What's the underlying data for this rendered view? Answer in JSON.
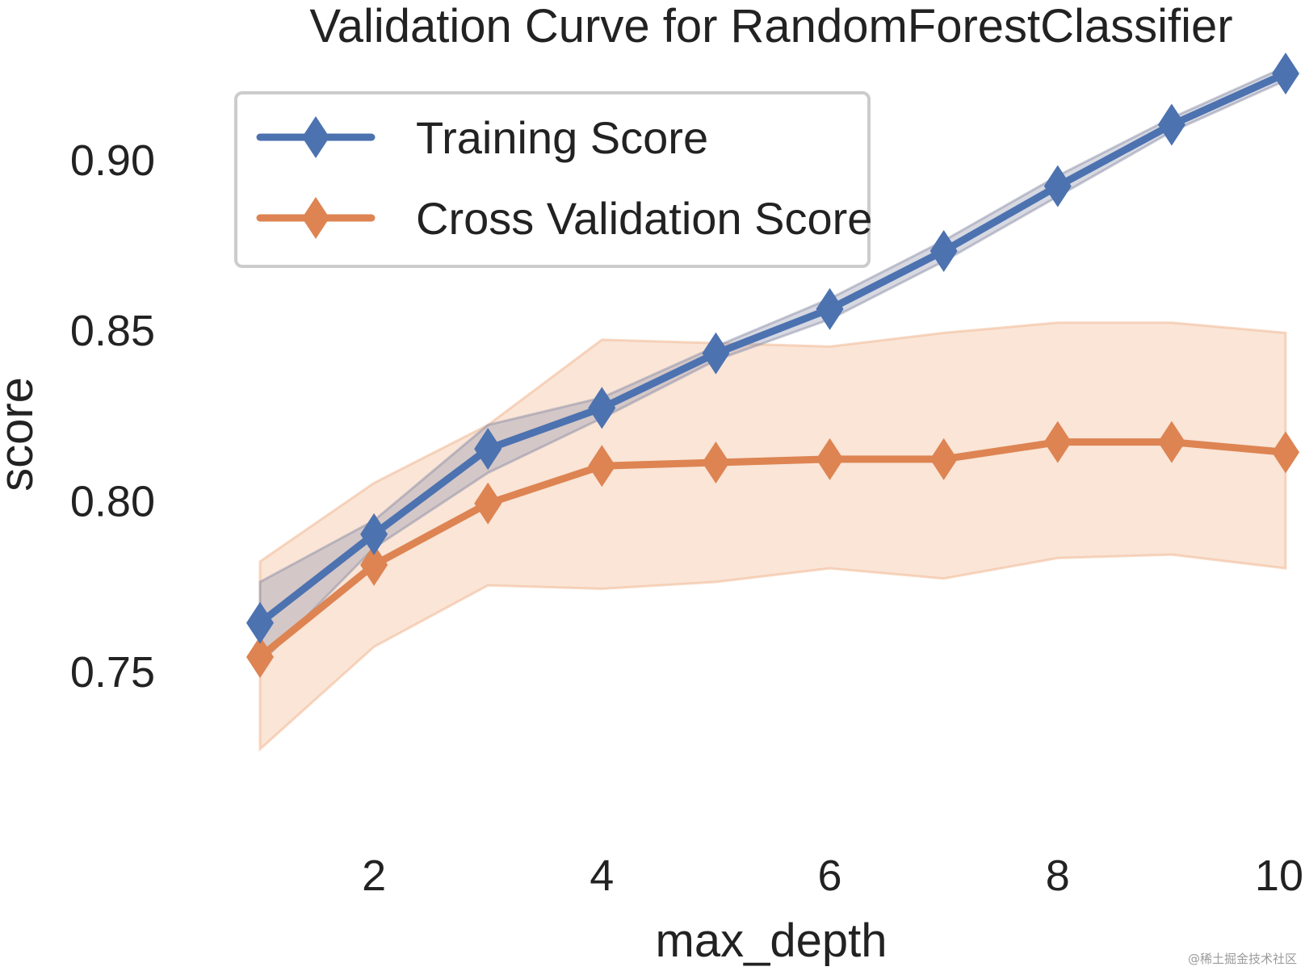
{
  "chart_data": {
    "type": "line",
    "title": "Validation Curve for RandomForestClassifier",
    "xlabel": "max_depth",
    "ylabel": "score",
    "x": [
      1,
      2,
      3,
      4,
      5,
      6,
      7,
      8,
      9,
      10
    ],
    "xticks": [
      2,
      4,
      6,
      8,
      10
    ],
    "yticks": [
      "0.75",
      "0.80",
      "0.85",
      "0.90"
    ],
    "xlim": [
      1,
      10
    ],
    "ylim": [
      0.71,
      0.93
    ],
    "grid": false,
    "legend_position": "top-left",
    "series": [
      {
        "name": "Training Score",
        "color": "#4c72b0",
        "values": [
          0.764,
          0.79,
          0.815,
          0.827,
          0.843,
          0.856,
          0.873,
          0.892,
          0.91,
          0.925
        ],
        "lower": [
          0.752,
          0.786,
          0.808,
          0.824,
          0.841,
          0.853,
          0.87,
          0.889,
          0.908,
          0.923
        ],
        "upper": [
          0.776,
          0.794,
          0.822,
          0.83,
          0.845,
          0.859,
          0.876,
          0.895,
          0.912,
          0.927
        ]
      },
      {
        "name": "Cross Validation Score",
        "color": "#dd8452",
        "values": [
          0.754,
          0.781,
          0.799,
          0.81,
          0.811,
          0.812,
          0.812,
          0.817,
          0.817,
          0.814
        ],
        "lower": [
          0.727,
          0.757,
          0.775,
          0.774,
          0.776,
          0.78,
          0.777,
          0.783,
          0.784,
          0.78
        ],
        "upper": [
          0.782,
          0.805,
          0.822,
          0.847,
          0.846,
          0.845,
          0.849,
          0.852,
          0.852,
          0.849
        ]
      }
    ]
  },
  "watermark": "@稀土掘金技术社区"
}
